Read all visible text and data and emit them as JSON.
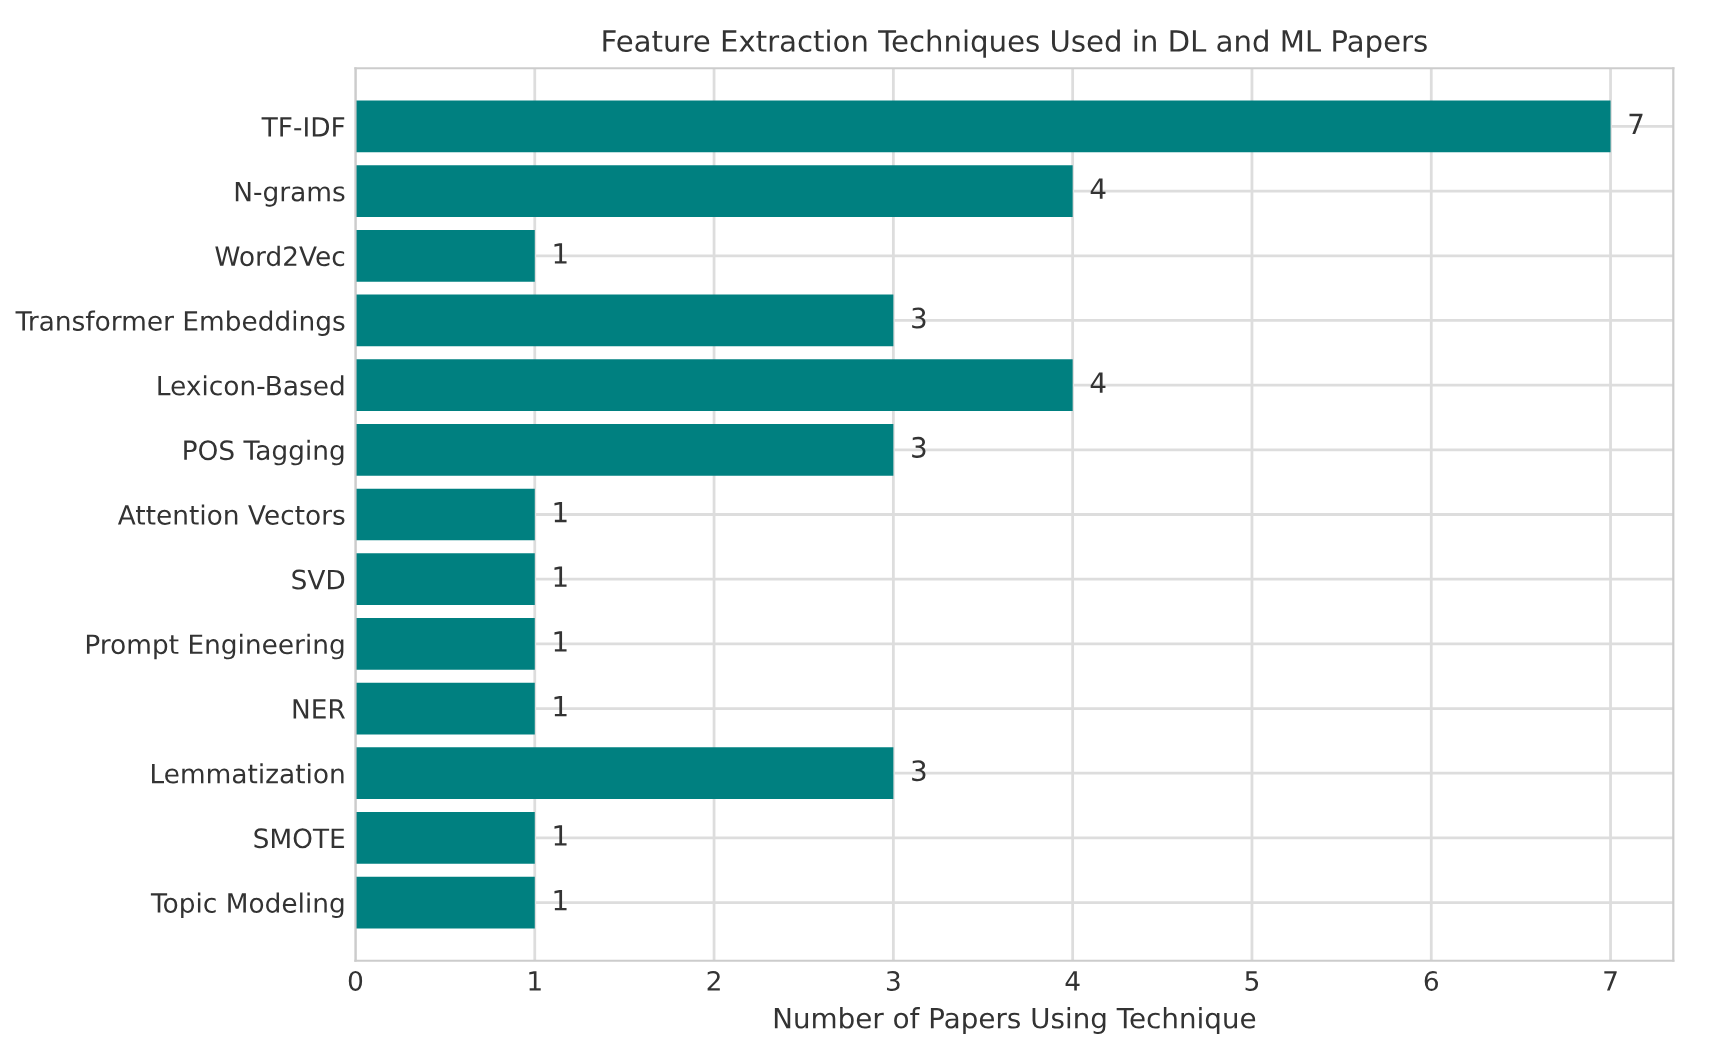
{
  "chart_data": {
    "type": "bar",
    "orientation": "horizontal",
    "title": "Feature Extraction Techniques Used in DL and ML Papers",
    "xlabel": "Number of Papers Using Technique",
    "categories": [
      "TF-IDF",
      "N-grams",
      "Word2Vec",
      "Transformer Embeddings",
      "Lexicon-Based",
      "POS Tagging",
      "Attention Vectors",
      "SVD",
      "Prompt Engineering",
      "NER",
      "Lemmatization",
      "SMOTE",
      "Topic Modeling"
    ],
    "values": [
      7,
      4,
      1,
      3,
      4,
      3,
      1,
      1,
      1,
      1,
      3,
      1,
      1
    ],
    "color": "#008080",
    "xlim": [
      0,
      7.35
    ],
    "xticks": [
      0,
      1,
      2,
      3,
      4,
      5,
      6,
      7
    ],
    "grid": true,
    "data_labels": true
  }
}
